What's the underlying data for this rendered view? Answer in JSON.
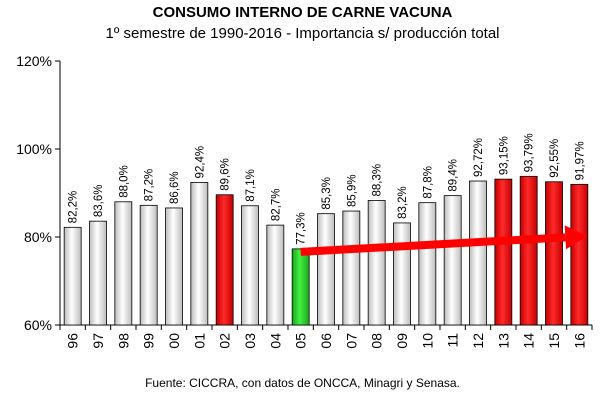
{
  "chart_data": {
    "type": "bar",
    "title": "CONSUMO INTERNO DE CARNE VACUNA",
    "subtitle": "1º semestre de 1990-2016 - Importancia s/ producción total",
    "source": "Fuente: CICCRA, con datos de ONCCA, Minagri y Senasa.",
    "categories": [
      "96",
      "97",
      "98",
      "99",
      "00",
      "01",
      "02",
      "03",
      "04",
      "05",
      "06",
      "07",
      "08",
      "09",
      "10",
      "11",
      "12",
      "13",
      "14",
      "15",
      "16"
    ],
    "values": [
      82.2,
      83.6,
      88.0,
      87.2,
      86.6,
      92.4,
      89.6,
      87.1,
      82.7,
      77.3,
      85.3,
      85.9,
      88.3,
      83.2,
      87.8,
      89.4,
      92.72,
      93.15,
      93.79,
      92.55,
      91.97
    ],
    "value_labels": [
      "82,2%",
      "83,6%",
      "88,0%",
      "87,2%",
      "86,6%",
      "92,4%",
      "89,6%",
      "87,1%",
      "82,7%",
      "77,3%",
      "85,3%",
      "85,9%",
      "88,3%",
      "83,2%",
      "87,8%",
      "89,4%",
      "92,72%",
      "93,15%",
      "93,79%",
      "92,55%",
      "91,97%"
    ],
    "bar_colors": [
      "#d8d8d8",
      "#d8d8d8",
      "#d8d8d8",
      "#d8d8d8",
      "#d8d8d8",
      "#d8d8d8",
      "#e00000",
      "#d8d8d8",
      "#d8d8d8",
      "#22cc22",
      "#d8d8d8",
      "#d8d8d8",
      "#d8d8d8",
      "#d8d8d8",
      "#d8d8d8",
      "#d8d8d8",
      "#d8d8d8",
      "#e00000",
      "#e00000",
      "#e00000",
      "#e00000"
    ],
    "ylim": [
      60,
      120
    ],
    "yticks": [
      60,
      80,
      100,
      120
    ],
    "ytick_labels": [
      "60%",
      "80%",
      "100%",
      "120%"
    ],
    "grid": false,
    "annotation": {
      "type": "trend-arrow",
      "from_category": "05",
      "to_category": "16",
      "color": "#ff0000"
    }
  }
}
